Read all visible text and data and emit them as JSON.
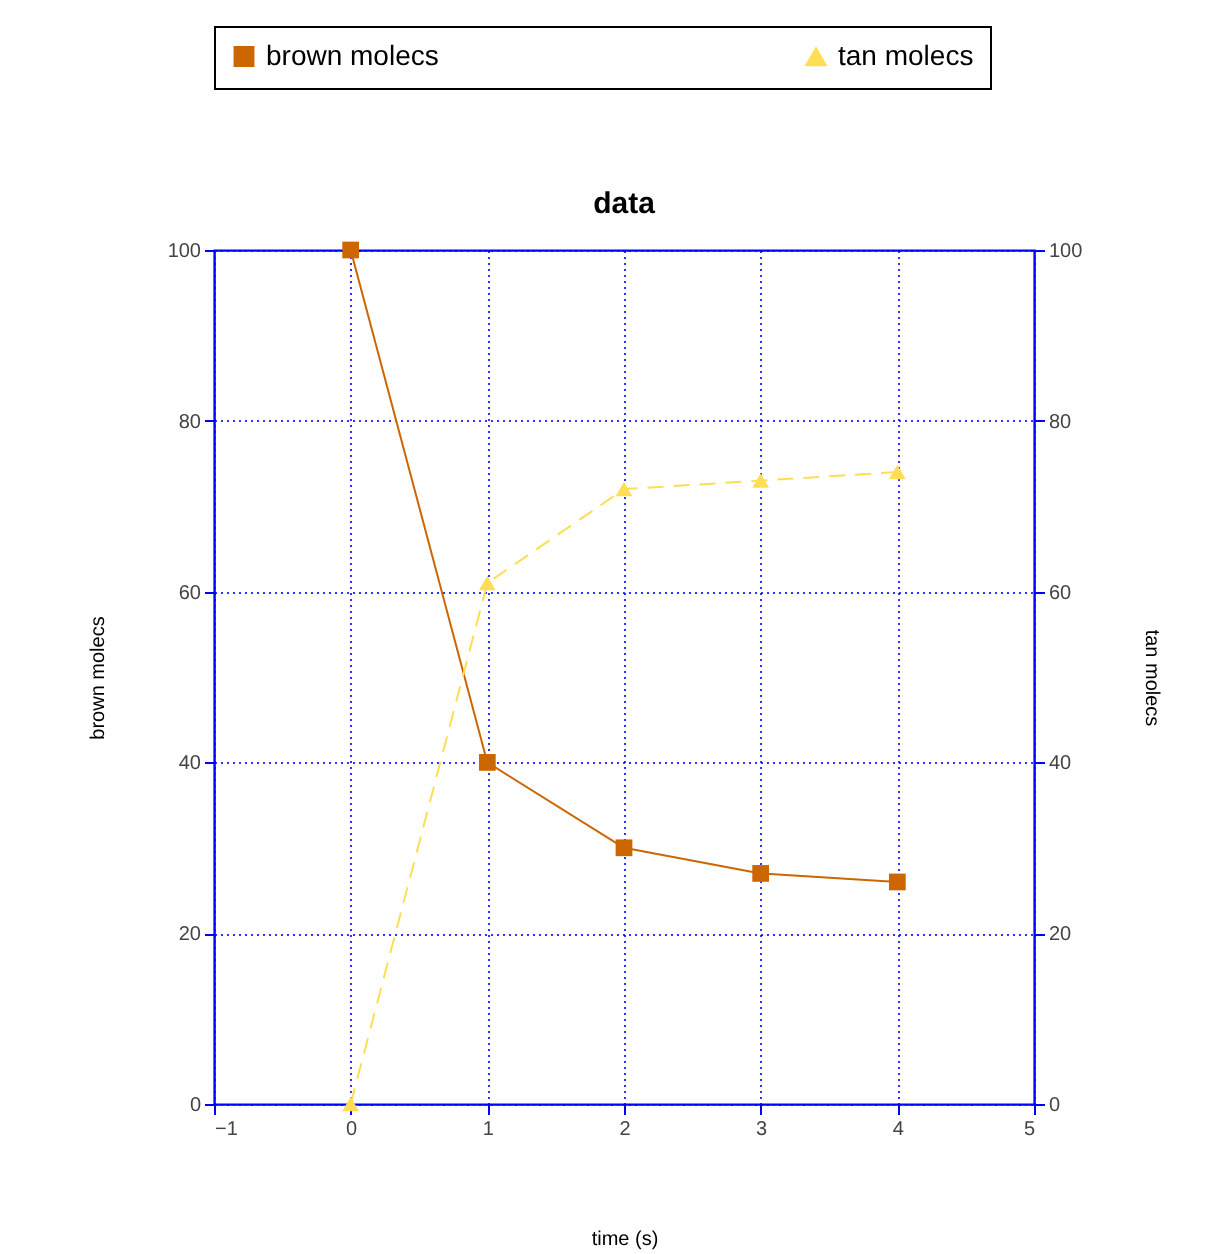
{
  "chart_data": {
    "type": "line",
    "title": "data",
    "xlabel": "time (s)",
    "ylabel": "brown molecs",
    "y2label": "tan molecs",
    "x": [
      0,
      1,
      2,
      3,
      4
    ],
    "series": [
      {
        "name": "brown molecs",
        "color": "#cc6600",
        "values": [
          100,
          40,
          30,
          27,
          26
        ],
        "marker": "square",
        "line_style": "solid"
      },
      {
        "name": "tan molecs",
        "color": "#ffdd55",
        "values": [
          0,
          61,
          72,
          73,
          74
        ],
        "marker": "triangle",
        "line_style": "dashed",
        "axis": "y2"
      }
    ],
    "xlim": [
      -1,
      5
    ],
    "xticks": [
      -1,
      0,
      1,
      2,
      3,
      4,
      5
    ],
    "ylim": [
      0,
      100
    ],
    "yticks": [
      0,
      20,
      40,
      60,
      80,
      100
    ],
    "y2lim": [
      0,
      100
    ],
    "y2ticks": [
      0,
      20,
      40,
      60,
      80,
      100
    ],
    "grid": true,
    "legend": "top"
  }
}
